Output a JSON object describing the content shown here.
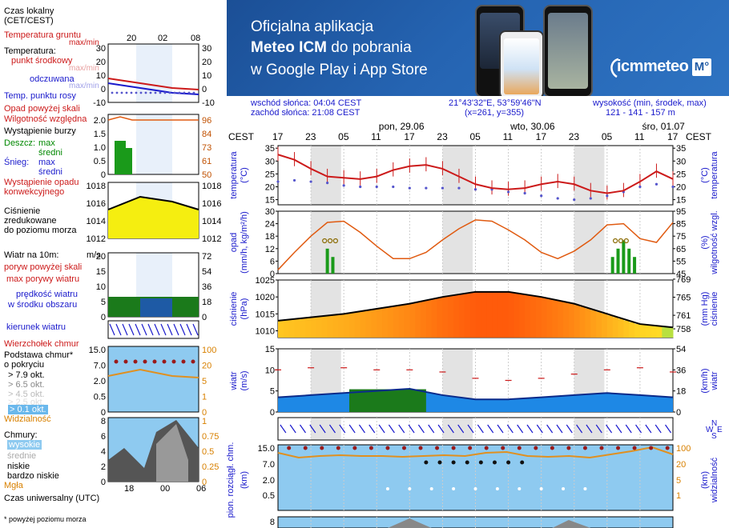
{
  "legend": {
    "clock_header": [
      "Czas lokalny",
      "(CET/CEST)"
    ],
    "clock_ticks": [
      "20",
      "02",
      "08"
    ],
    "temp": {
      "soil": "Temperatura gruntu",
      "soil_sub": "max/min",
      "label": "Temperatura:",
      "mid": "punkt środkowy",
      "mid_sub": "max/min",
      "feel": "odczuwana",
      "feel_sub": "max/min",
      "dew": "Temp. punktu rosy",
      "ticks": [
        "30",
        "20",
        "10",
        "0",
        "-10"
      ],
      "ticks_right": [
        "30",
        "20",
        "10",
        "0",
        "-10"
      ]
    },
    "precip": {
      "rh": "Wilgotność względna",
      "above": "Opad powyżej skali",
      "storm": "Wystąpienie burzy",
      "rain": "Deszcz:",
      "rain_max": "max",
      "rain_mean": "średni",
      "snow": "Śnieg:",
      "snow_max": "max",
      "snow_mean": "średni",
      "conv": "Wystąpienie opadu",
      "conv2": "konwekcyjnego",
      "ticks": [
        "2.0",
        "1.5",
        "1.0",
        "0.5",
        "0"
      ],
      "ticks_right": [
        "96",
        "84",
        "73",
        "61",
        "50"
      ]
    },
    "pressure": {
      "l1": "Ciśnienie",
      "l2": "zredukowane",
      "l3": "do poziomu morza",
      "ticks": [
        "1018",
        "1016",
        "1014",
        "1012"
      ],
      "ticks_right": [
        "1018",
        "1016",
        "1014",
        "1012"
      ]
    },
    "wind": {
      "label": "Wiatr na 10m:",
      "gust_above": "poryw powyżej skali",
      "gust": "max porywy wiatru",
      "speed": "prędkość wiatru",
      "speed2": "w środku obszaru",
      "ticks": [
        "20",
        "15",
        "10",
        "5",
        "0"
      ],
      "ticks_right": [
        "72",
        "54",
        "36",
        "18",
        "0"
      ],
      "unit": "m/s"
    },
    "wind_dir": "kierunek wiatru",
    "cloud_base": {
      "top": "Wierzchołek chmur",
      "base": "Podstawa chmur*",
      "base2": "o pokryciu",
      "cov": [
        "> 7.9 okt.",
        "> 6.5 okt.",
        "> 4.5 okt.",
        "> 2.5 okt.",
        "> 0.1 okt."
      ],
      "vis": "Widzialność",
      "ticks": [
        "15.0",
        "7.0",
        "2.0",
        "0.5",
        "0"
      ],
      "ticks_right": [
        "100",
        "20",
        "5",
        "1",
        "0"
      ]
    },
    "clouds": {
      "label": "Chmury:",
      "high": "wysokie",
      "mid": "średnie",
      "low": "niskie",
      "vlow": "bardzo niskie",
      "fog": "Mgła",
      "ticks": [
        "8",
        "6",
        "4",
        "2",
        "0"
      ],
      "ticks_right": [
        "1",
        "0.75",
        "0.5",
        "0.25",
        "0"
      ]
    },
    "utc": "Czas uniwersalny (UTC)",
    "utc_ticks": [
      "18",
      "00",
      "06"
    ],
    "footnote": "* powyżej poziomu morza"
  },
  "banner": {
    "line1": "Oficjalna aplikacja",
    "line2_bold": "Meteo ICM",
    "line2_rest": " do pobrania",
    "line3": "w Google Play i App Store",
    "logo": "icmmeteo",
    "logo_badge": "M°"
  },
  "info": {
    "sunrise": "wschód słońca: 04:04 CEST",
    "sunset": "zachód słońca: 21:08 CEST",
    "coords": "21°43'32\"E, 53°59'46\"N",
    "grid": "(x=261,  y=355)",
    "height_label": "wysokość (min, środek, max)",
    "height_values": "121 - 141 - 157 m"
  },
  "timeline": {
    "zone": "CEST",
    "days": [
      "pon, 29.06",
      "wto, 30.06",
      "śro, 01.07"
    ],
    "hours": [
      "17",
      "23",
      "05",
      "11",
      "17",
      "23",
      "05",
      "11",
      "17",
      "23",
      "05",
      "11",
      "17"
    ]
  },
  "panels": {
    "temp": {
      "label_left": "temperatura",
      "unit_left": "(°C)",
      "label_right": "temperatura",
      "unit_right": "(°C)",
      "ticks": [
        "35",
        "30",
        "25",
        "20",
        "15"
      ]
    },
    "precip": {
      "label_left": "opad",
      "unit_left": "(mm/h, kg/m²/h)",
      "label_right": "wilgotność wzgl.",
      "unit_right": "(%)",
      "ticks": [
        "30",
        "24",
        "18",
        "12",
        "6",
        "0"
      ],
      "ticks_right": [
        "95",
        "85",
        "75",
        "65",
        "55",
        "45"
      ]
    },
    "pressure": {
      "label_left": "ciśnienie",
      "unit_left": "(hPa)",
      "label_right": "ciśnienie",
      "unit_right": "(mm Hg)",
      "ticks": [
        "1025",
        "1020",
        "1015",
        "1010"
      ],
      "ticks_right": [
        "769",
        "765",
        "761",
        "758"
      ]
    },
    "wind": {
      "label_left": "wiatr",
      "unit_left": "(m/s)",
      "label_right": "wiatr",
      "unit_right": "(km/h)",
      "ticks": [
        "15",
        "10",
        "5",
        "0"
      ],
      "ticks_right": [
        "54",
        "36",
        "18",
        "0"
      ]
    },
    "wind_dir": {
      "compass": [
        "N",
        "W",
        "E",
        "S"
      ]
    },
    "cloud": {
      "label_left": "pion. rozciągł. chm.",
      "unit_left": "(km)",
      "label_right": "widzialność",
      "unit_right": "(km)",
      "ticks": [
        "15.0",
        "7.0",
        "2.0",
        "0.5"
      ],
      "ticks_right": [
        "100",
        "20",
        "5",
        "1"
      ]
    },
    "clouds_bottom": {
      "ticks": [
        "8"
      ]
    }
  },
  "chart_data": [
    {
      "type": "line",
      "title": "temperatura",
      "ylabel": "temperatura (°C)",
      "ylim": [
        13,
        36
      ],
      "x_hours": [
        0,
        3,
        6,
        9,
        12,
        15,
        18,
        21,
        24,
        27,
        30,
        33,
        36,
        39,
        42,
        45,
        48,
        51,
        54,
        57,
        60,
        63,
        66,
        69,
        72
      ],
      "series": [
        {
          "name": "punkt środkowy",
          "color": "#cc1a1a",
          "values": [
            32.5,
            30.5,
            27,
            24,
            23.5,
            23,
            24,
            26.5,
            28,
            28.5,
            27,
            24,
            21,
            19.5,
            19,
            19.5,
            21,
            22,
            21,
            18.5,
            17.5,
            18.5,
            22,
            26,
            23
          ]
        },
        {
          "name": "punkt rosy",
          "color": "#5555cc",
          "values": [
            22,
            22.5,
            22,
            21.5,
            20.5,
            20,
            20,
            20,
            19.5,
            19.5,
            19.5,
            19.5,
            19,
            19,
            18,
            17.5,
            16.5,
            15.5,
            15,
            15.5,
            16.5,
            18,
            20,
            21,
            20
          ]
        }
      ]
    },
    {
      "type": "line",
      "title": "opad / wilgotność",
      "ylabel": "wilgotność wzgl. (%)",
      "ylim": [
        45,
        95
      ],
      "x_hours": [
        0,
        3,
        6,
        9,
        12,
        15,
        18,
        21,
        24,
        27,
        30,
        33,
        36,
        39,
        42,
        45,
        48,
        51,
        54,
        57,
        60,
        63,
        66,
        69,
        72
      ],
      "series": [
        {
          "name": "wilgotność",
          "color": "#e05a10",
          "values": [
            48,
            62,
            75,
            86,
            87,
            78,
            67,
            57,
            57,
            62,
            72,
            81,
            88,
            87,
            80,
            72,
            62,
            57,
            63,
            72,
            84,
            85,
            73,
            70,
            86
          ]
        }
      ]
    },
    {
      "type": "area",
      "title": "ciśnienie",
      "ylabel": "ciśnienie (hPa)",
      "ylim": [
        1008,
        1025
      ],
      "x_hours": [
        0,
        6,
        12,
        18,
        24,
        30,
        36,
        42,
        48,
        54,
        60,
        66,
        72
      ],
      "series": [
        {
          "name": "ciśnienie",
          "values": [
            1013,
            1014,
            1015,
            1016.5,
            1018,
            1020,
            1021.5,
            1021.5,
            1020,
            1018,
            1015,
            1012,
            1011
          ]
        }
      ]
    },
    {
      "type": "line",
      "title": "wiatr",
      "ylabel": "wiatr (m/s)",
      "ylim": [
        0,
        15
      ],
      "x_hours": [
        0,
        6,
        12,
        18,
        24,
        30,
        36,
        42,
        48,
        54,
        60,
        66,
        72
      ],
      "series": [
        {
          "name": "prędkość wiatru",
          "values": [
            3.5,
            4,
            4.5,
            5,
            5.5,
            4,
            3,
            3,
            3.5,
            4,
            4.5,
            4,
            3.5
          ]
        },
        {
          "name": "max porywy wiatru",
          "values": [
            10,
            10.5,
            10.5,
            10,
            10,
            9.5,
            8,
            7.5,
            8,
            9,
            10,
            10.5,
            9.5
          ]
        }
      ]
    }
  ]
}
